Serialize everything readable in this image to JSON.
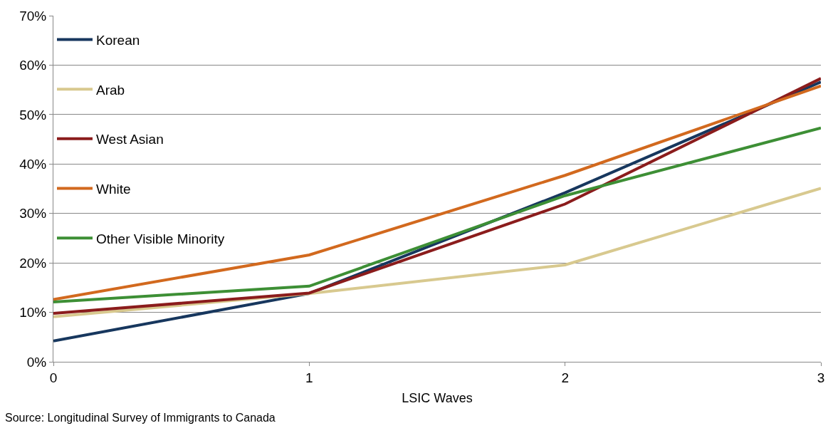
{
  "chart_data": {
    "type": "line",
    "xlabel": "LSIC Waves",
    "x": [
      0,
      1,
      2,
      3
    ],
    "series": [
      {
        "name": "Korean",
        "color": "#17375e",
        "values": [
          4.2,
          13.8,
          34.2,
          56.6
        ]
      },
      {
        "name": "Arab",
        "color": "#d8c98f",
        "values": [
          9.1,
          13.8,
          19.6,
          35.1
        ]
      },
      {
        "name": "West Asian",
        "color": "#8b1c1c",
        "values": [
          9.8,
          13.9,
          31.9,
          57.3
        ]
      },
      {
        "name": "White",
        "color": "#d2691e",
        "values": [
          12.6,
          21.6,
          37.7,
          55.8
        ]
      },
      {
        "name": "Other Visible Minority",
        "color": "#3d8f35",
        "values": [
          12.1,
          15.3,
          33.6,
          47.3
        ]
      }
    ],
    "xlim": [
      0,
      3
    ],
    "xticks": [
      0,
      1,
      2,
      3
    ],
    "ylim": [
      0,
      70
    ],
    "yticks": [
      {
        "value": 0,
        "label": "0%"
      },
      {
        "value": 10,
        "label": "10%"
      },
      {
        "value": 20,
        "label": "20%"
      },
      {
        "value": 30,
        "label": "30%"
      },
      {
        "value": 40,
        "label": "40%"
      },
      {
        "value": 50,
        "label": "50%"
      },
      {
        "value": 60,
        "label": "60%"
      },
      {
        "value": 70,
        "label": "70%"
      }
    ],
    "grid": "y",
    "legend": "top left",
    "marker": "none",
    "line_style": "solid",
    "annotations": [
      "Source: Longitudinal Survey of Immigrants to Canada"
    ]
  }
}
